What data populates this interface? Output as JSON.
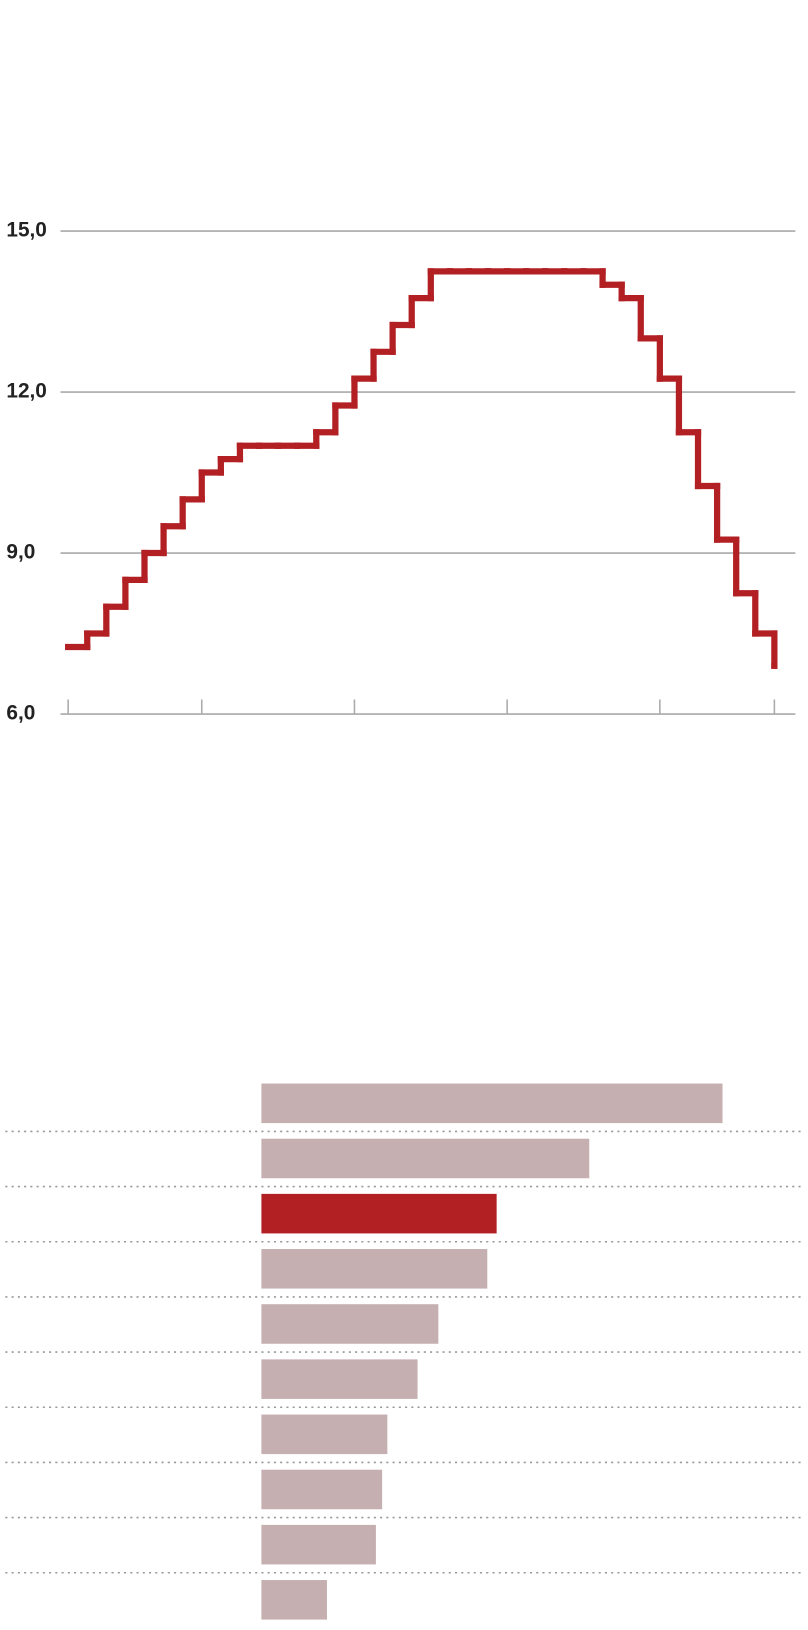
{
  "chart_data": [
    {
      "type": "step",
      "x": [
        0,
        1,
        2,
        3,
        4,
        5,
        6,
        7,
        8,
        9,
        10,
        11,
        12,
        13,
        14,
        15,
        16,
        17,
        18,
        19,
        20,
        21,
        22,
        23,
        24,
        25,
        26,
        27,
        28,
        29,
        30,
        31,
        32,
        33,
        34,
        35,
        36,
        37
      ],
      "series": [
        {
          "color": "#b22024",
          "values": [
            7.25,
            7.5,
            8.0,
            8.5,
            9.0,
            9.5,
            10.0,
            10.5,
            10.75,
            11.0,
            11.0,
            11.0,
            11.0,
            11.25,
            11.75,
            12.25,
            12.75,
            13.25,
            13.75,
            14.25,
            14.25,
            14.25,
            14.25,
            14.25,
            14.25,
            14.25,
            14.25,
            14.25,
            14.0,
            13.75,
            13.0,
            12.25,
            11.25,
            10.25,
            9.25,
            8.25,
            7.5,
            6.9
          ]
        }
      ],
      "xlim": [
        -0.4,
        38.1
      ],
      "xticks": [
        0,
        7,
        15,
        23,
        31,
        37
      ],
      "ylim": [
        6,
        15
      ],
      "yticks": [
        {
          "value": 6,
          "label": "6,0"
        },
        {
          "value": 9,
          "label": "9,0"
        },
        {
          "value": 12,
          "label": "12,0"
        },
        {
          "value": 15,
          "label": "15,0"
        }
      ],
      "grid": true
    },
    {
      "type": "hbar",
      "values": [
        443,
        315,
        226,
        217,
        170,
        150,
        121,
        116,
        110,
        63
      ],
      "colors": [
        "#c5afb0",
        "#c5afb0",
        "#b22024",
        "#c5afb0",
        "#c5afb0",
        "#c5afb0",
        "#c5afb0",
        "#c5afb0",
        "#c5afb0",
        "#c5afb0"
      ]
    }
  ]
}
